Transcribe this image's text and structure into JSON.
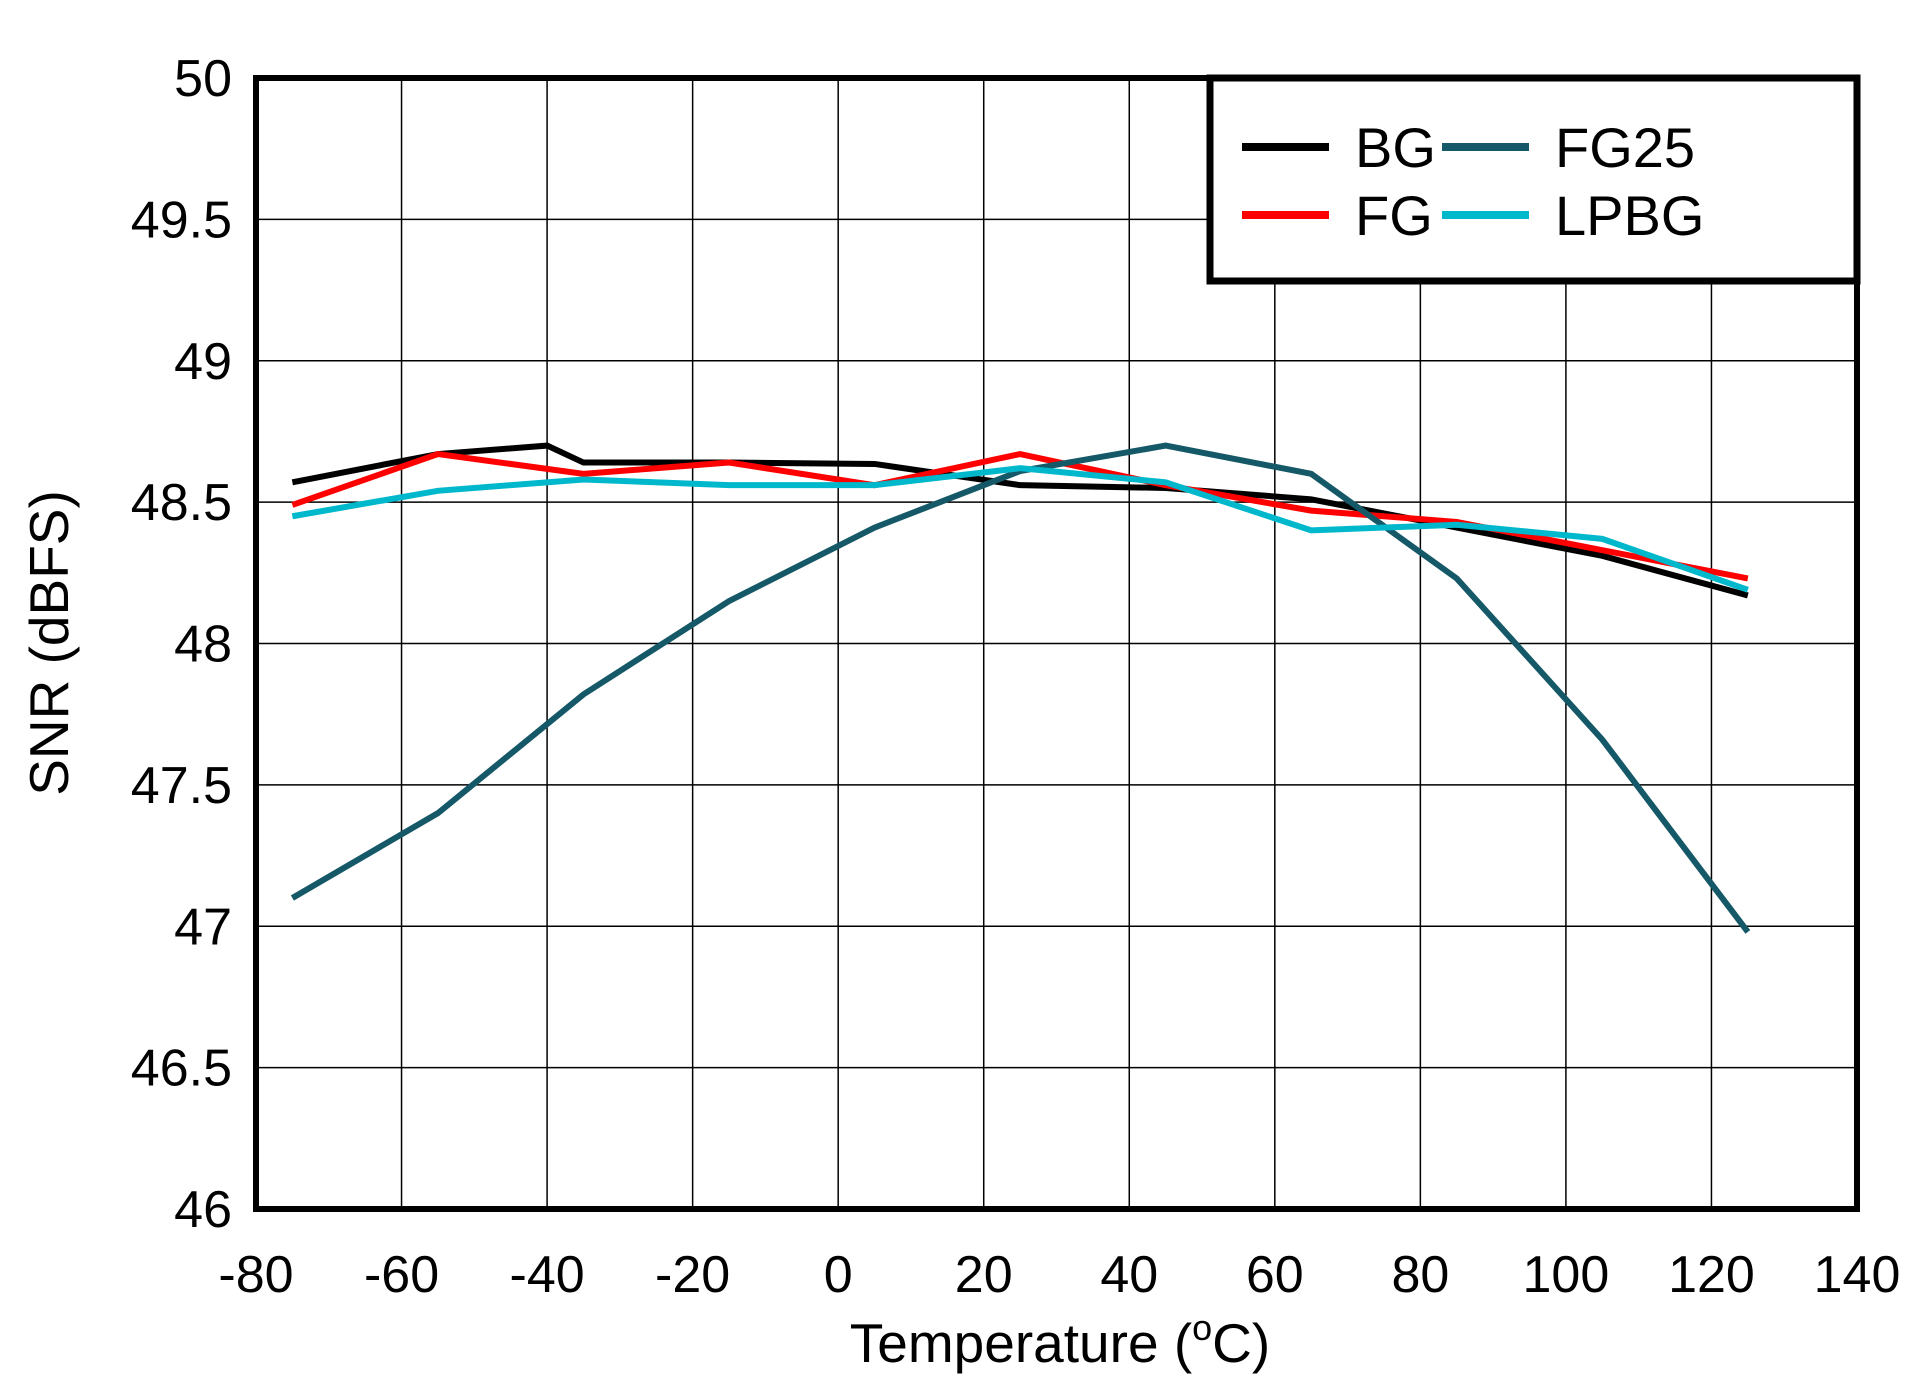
{
  "chart_data": {
    "type": "line",
    "title": "",
    "xlabel": "Temperature  (",
    "xlabel_sup": "o",
    "xlabel_tail": "C)",
    "ylabel": "SNR  (dBFS)",
    "xlim": [
      -80,
      140
    ],
    "ylim": [
      46,
      50
    ],
    "xticks": [
      -80,
      -60,
      -40,
      -20,
      0,
      20,
      40,
      60,
      80,
      100,
      120,
      140
    ],
    "yticks": [
      46,
      46.5,
      47,
      47.5,
      48,
      48.5,
      49,
      49.5,
      50
    ],
    "xtick_labels": [
      "-80",
      "-60",
      "-40",
      "-20",
      "0",
      "20",
      "40",
      "60",
      "80",
      "100",
      "120",
      "140"
    ],
    "ytick_labels": [
      "46",
      "46.5",
      "47",
      "47.5",
      "48",
      "48.5",
      "49",
      "49.5",
      "50"
    ],
    "grid": true,
    "legend_placement": "top-right",
    "series": [
      {
        "name": "BG",
        "color": "#000000",
        "x": [
          -75,
          -55,
          -40,
          -35,
          -15,
          5,
          25,
          45,
          65,
          85,
          105,
          125
        ],
        "y": [
          48.57,
          48.67,
          48.7,
          48.64,
          48.64,
          48.635,
          48.56,
          48.55,
          48.51,
          48.41,
          48.31,
          48.17
        ]
      },
      {
        "name": "FG",
        "color": "#ff0000",
        "x": [
          -75,
          -55,
          -35,
          -15,
          5,
          25,
          45,
          65,
          85,
          105,
          125
        ],
        "y": [
          48.49,
          48.67,
          48.6,
          48.64,
          48.56,
          48.67,
          48.56,
          48.47,
          48.43,
          48.33,
          48.23
        ]
      },
      {
        "name": "FG25",
        "color": "#155868",
        "x": [
          -75,
          -55,
          -35,
          -15,
          5,
          25,
          45,
          65,
          85,
          105,
          125
        ],
        "y": [
          47.1,
          47.4,
          47.82,
          48.15,
          48.41,
          48.61,
          48.7,
          48.6,
          48.23,
          47.66,
          46.98
        ]
      },
      {
        "name": "LPBG",
        "color": "#00b8cc",
        "x": [
          -75,
          -55,
          -35,
          -15,
          5,
          25,
          45,
          65,
          85,
          105,
          125
        ],
        "y": [
          48.45,
          48.54,
          48.58,
          48.56,
          48.56,
          48.62,
          48.57,
          48.4,
          48.42,
          48.37,
          48.19
        ]
      }
    ]
  }
}
